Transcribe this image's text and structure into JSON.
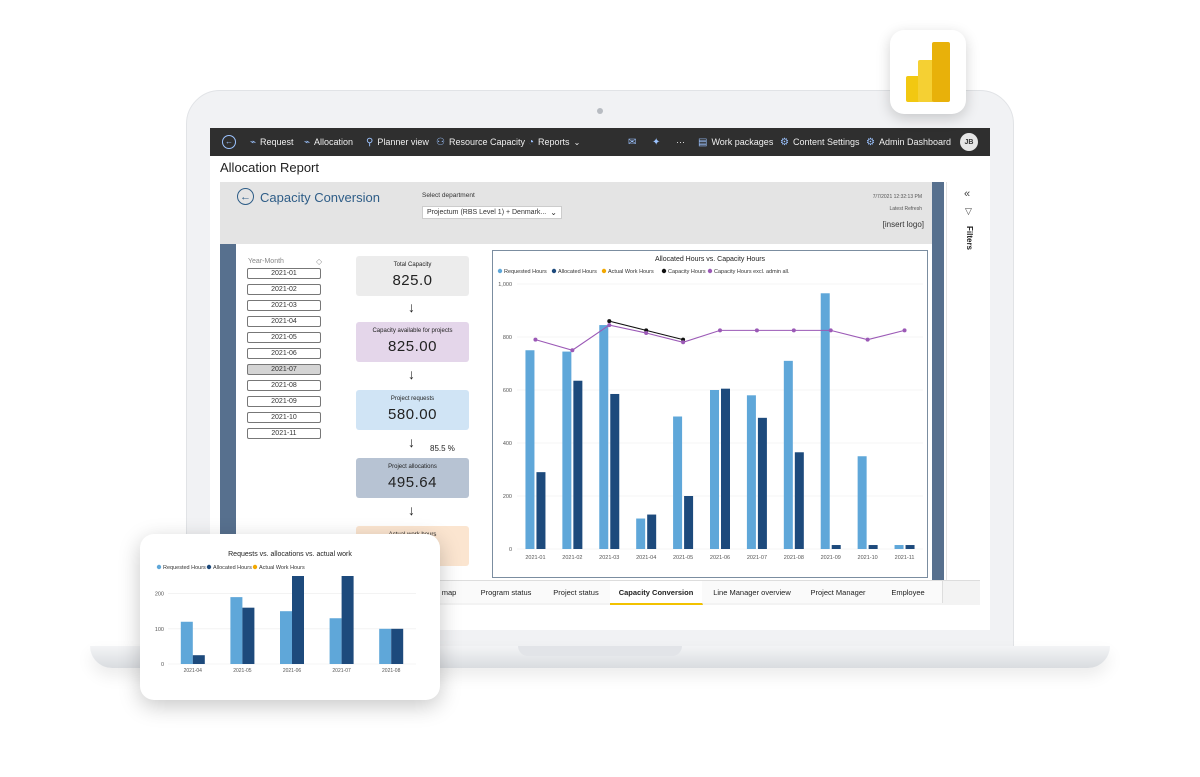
{
  "nav": {
    "items": [
      {
        "label": "Request",
        "icon": "request-icon"
      },
      {
        "label": "Allocation",
        "icon": "allocation-icon"
      },
      {
        "label": "Planner view",
        "icon": "planner-icon"
      },
      {
        "label": "Resource Capacity",
        "icon": "resource-icon"
      },
      {
        "label": "Reports",
        "icon": "reports-icon"
      }
    ],
    "right_items": [
      {
        "label": "Work packages",
        "icon": "work-packages-icon"
      },
      {
        "label": "Content Settings",
        "icon": "settings-icon"
      },
      {
        "label": "Admin Dashboard",
        "icon": "admin-icon"
      }
    ],
    "more": "···",
    "avatar": "JB"
  },
  "page_title": "Allocation Report",
  "report": {
    "title": "Capacity Conversion",
    "department_label": "Select department",
    "department_value": "Projectum (RBS Level 1) + Denmark...",
    "refresh_time": "7/7/2021 12:32:13 PM",
    "refresh_label": "Latest Refresh",
    "logo_placeholder": "[insert logo]",
    "filters_label": "Filters",
    "slicer": {
      "title": "Year-Month",
      "items": [
        "2021-01",
        "2021-02",
        "2021-03",
        "2021-04",
        "2021-05",
        "2021-06",
        "2021-07",
        "2021-08",
        "2021-09",
        "2021-10",
        "2021-11"
      ],
      "selected": "2021-07"
    },
    "kpis": [
      {
        "label": "Total Capacity",
        "value": "825.0",
        "color": "#ececec"
      },
      {
        "label": "Capacity available for projects",
        "value": "825.00",
        "color": "#e4d6ea"
      },
      {
        "label": "Project requests",
        "value": "580.00",
        "color": "#d0e4f5"
      },
      {
        "label": "Project allocations",
        "value": "495.64",
        "color": "#b7c3d3"
      },
      {
        "label": "Actual work hours",
        "value": "",
        "color": "#fbe5d0"
      }
    ],
    "conversion_pct": "85.5 %",
    "arrow_glyph": "↓"
  },
  "tabs": [
    {
      "label": "map"
    },
    {
      "label": "Program status"
    },
    {
      "label": "Project status"
    },
    {
      "label": "Capacity Conversion",
      "active": true
    },
    {
      "label": "Line Manager overview"
    },
    {
      "label": "Project Manager"
    },
    {
      "label": "Employee"
    }
  ],
  "colors": {
    "requested": "#5fa7d9",
    "allocated": "#1d4a7c",
    "actual": "#f2a800",
    "capacity": "#111111",
    "capacity_excl": "#9b59b6"
  },
  "chart_data": [
    {
      "type": "bar",
      "title": "Allocated Hours vs. Capacity Hours",
      "categories": [
        "2021-01",
        "2021-02",
        "2021-03",
        "2021-04",
        "2021-05",
        "2021-06",
        "2021-07",
        "2021-08",
        "2021-09",
        "2021-10",
        "2021-11"
      ],
      "ylim": [
        0,
        1000
      ],
      "yticks": [
        "0",
        "200",
        "400",
        "600",
        "800",
        "1,000"
      ],
      "legend_position": "top-left",
      "series": [
        {
          "name": "Requested Hours",
          "kind": "bar",
          "values": [
            750,
            745,
            845,
            115,
            500,
            600,
            580,
            710,
            965,
            350,
            15
          ]
        },
        {
          "name": "Allocated Hours",
          "kind": "bar",
          "values": [
            290,
            635,
            585,
            130,
            200,
            605,
            495,
            365,
            15,
            15,
            15
          ]
        },
        {
          "name": "Actual Work Hours",
          "kind": "bar",
          "values": [
            0,
            0,
            0,
            0,
            0,
            0,
            0,
            0,
            0,
            0,
            0
          ]
        },
        {
          "name": "Capacity Hours",
          "kind": "line",
          "values": [
            null,
            null,
            860,
            825,
            790,
            null,
            null,
            null,
            null,
            null,
            null
          ]
        },
        {
          "name": "Capacity Hours excl. admin all.",
          "kind": "line",
          "values": [
            790,
            750,
            845,
            815,
            780,
            825,
            825,
            825,
            825,
            790,
            825
          ]
        }
      ]
    },
    {
      "type": "bar",
      "title": "Requests vs. allocations vs. actual work",
      "categories": [
        "2021-04",
        "2021-05",
        "2021-06",
        "2021-07",
        "2021-08"
      ],
      "ylim": [
        0,
        250
      ],
      "yticks": [
        "0",
        "100",
        "200"
      ],
      "legend_position": "top-left",
      "series": [
        {
          "name": "Requested Hours",
          "values": [
            120,
            190,
            150,
            130,
            100
          ]
        },
        {
          "name": "Allocated Hours",
          "values": [
            25,
            160,
            250,
            250,
            100
          ]
        },
        {
          "name": "Actual Work Hours",
          "values": [
            0,
            0,
            0,
            0,
            0
          ]
        }
      ]
    }
  ]
}
